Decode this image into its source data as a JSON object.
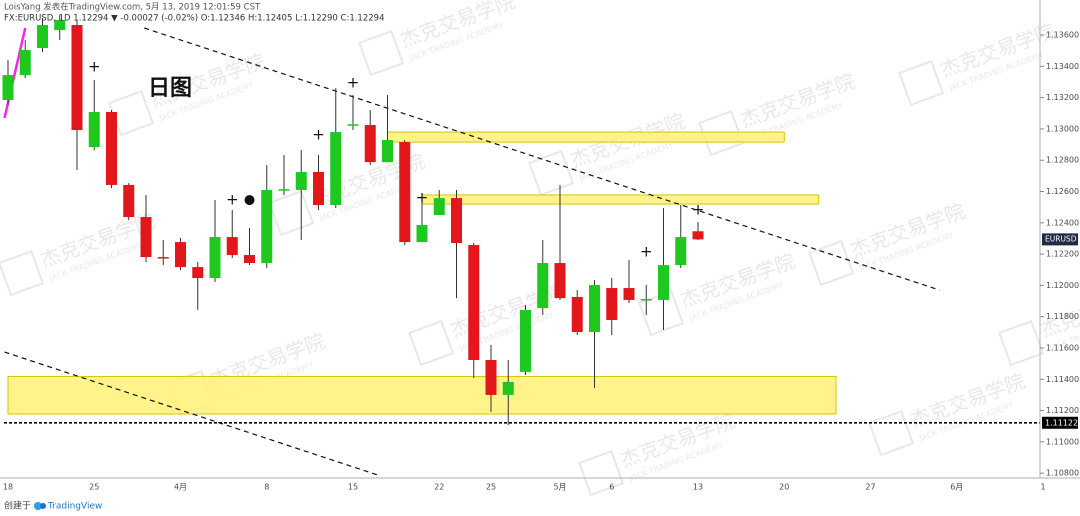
{
  "header": {
    "line1": "LoisYang 发表在TradingView.com, 5月 13, 2019 12:01:59 CST",
    "line2": "FX:EURUSD, 1D 1.12294 ▼ -0.00027 (-0.02%) O:1.12346 H:1.12405 L:1.12290 C:1.12294"
  },
  "footer": {
    "created": "创建于",
    "brand": "TradingView"
  },
  "watermark": {
    "cn": "杰克交易学院",
    "en": "JACK TRADING ACADEMY"
  },
  "chart_data": {
    "type": "candlestick",
    "title": "日图",
    "symbol": "EURUSD",
    "up_color": "#1ec81e",
    "down_color": "#e3161c",
    "categories": [
      "18",
      null,
      null,
      null,
      null,
      "25",
      null,
      null,
      null,
      null,
      "4月",
      null,
      null,
      null,
      null,
      "8",
      null,
      null,
      null,
      null,
      "15",
      null,
      null,
      null,
      null,
      "22",
      null,
      null,
      "25",
      null,
      null,
      null,
      "5月",
      null,
      null,
      "6",
      null,
      null,
      null,
      null,
      "13",
      null,
      null,
      null,
      null,
      "20",
      null,
      null,
      null,
      null,
      "27",
      null,
      null,
      null,
      null,
      "6月",
      null,
      null,
      null,
      null,
      "1"
    ],
    "open": [
      1.13185,
      1.13344,
      1.13517,
      1.13632,
      1.13664,
      1.12884,
      1.13108,
      1.12642,
      1.12437,
      1.12181,
      1.12277,
      1.12117,
      1.12047,
      1.12309,
      1.12194,
      1.12143,
      1.1261,
      1.1261,
      1.12725,
      1.12514,
      1.13025,
      1.13025,
      1.12788,
      1.12916,
      1.12277,
      1.1245,
      1.12558,
      1.12258,
      1.11523,
      1.113,
      1.11447,
      1.11855,
      1.12143,
      1.11926,
      1.11702,
      1.11983,
      1.11983,
      1.11907,
      1.11907,
      1.1213,
      1.12346,
      null,
      null,
      null,
      null,
      null,
      null,
      null,
      null,
      null,
      null,
      null,
      null,
      null,
      null,
      null,
      null,
      null,
      null,
      null,
      null
    ],
    "high": [
      1.1344,
      1.13568,
      1.13709,
      1.13728,
      1.13696,
      1.13312,
      1.13121,
      1.12654,
      1.12578,
      1.1229,
      1.12303,
      1.12149,
      1.12546,
      1.12482,
      1.12367,
      1.12769,
      1.12833,
      1.12865,
      1.12833,
      1.13261,
      1.13217,
      1.13121,
      1.13217,
      1.12929,
      1.12578,
      1.1261,
      1.1261,
      1.12271,
      1.11619,
      1.11523,
      1.11875,
      1.1229,
      1.12642,
      1.1197,
      1.12034,
      1.12047,
      1.12162,
      1.12002,
      1.12494,
      1.12514,
      1.12405,
      null,
      null,
      null,
      null,
      null,
      null,
      null,
      null,
      null,
      null,
      null,
      null,
      null,
      null,
      null,
      null,
      null,
      null,
      null,
      null
    ],
    "low": [
      1.13153,
      1.13325,
      1.13491,
      1.13568,
      1.12737,
      1.12865,
      1.12622,
      1.12418,
      1.12149,
      1.1213,
      1.12098,
      1.11843,
      1.12022,
      1.12175,
      1.1213,
      1.12111,
      1.12578,
      1.1229,
      1.12482,
      1.12494,
      1.12993,
      1.12769,
      1.12788,
      1.12258,
      1.12277,
      1.1245,
      1.11919,
      1.11408,
      1.11191,
      1.11108,
      1.11427,
      1.11811,
      1.11907,
      1.11683,
      1.11344,
      1.11683,
      1.11887,
      1.11811,
      1.11715,
      1.12111,
      1.1229,
      null,
      null,
      null,
      null,
      null,
      null,
      null,
      null,
      null,
      null,
      null,
      null,
      null,
      null,
      null,
      null,
      null,
      null,
      null,
      null
    ],
    "close": [
      1.13344,
      1.13504,
      1.13664,
      1.13696,
      1.12993,
      1.13108,
      1.12642,
      1.12437,
      1.12181,
      1.12175,
      1.12117,
      1.12047,
      1.12309,
      1.12194,
      1.12143,
      1.1261,
      1.12615,
      1.12725,
      1.12514,
      1.1298,
      1.1303,
      1.12788,
      1.12929,
      1.12277,
      1.12386,
      1.12558,
      1.12271,
      1.11523,
      1.113,
      1.11383,
      1.11843,
      1.12143,
      1.11919,
      1.11702,
      1.12002,
      1.11779,
      1.11907,
      1.11913,
      1.1213,
      1.12309,
      1.12294,
      null,
      null,
      null,
      null,
      null,
      null,
      null,
      null,
      null,
      null,
      null,
      null,
      null,
      null,
      null,
      null,
      null,
      null,
      null,
      null
    ],
    "ylim": [
      1.10769,
      1.13824
    ],
    "yticks": [
      {
        "value": 1.108,
        "label": "1.10800"
      },
      {
        "value": 1.11,
        "label": "1.11000"
      },
      {
        "value": 1.112,
        "label": "1.11200"
      },
      {
        "value": 1.114,
        "label": "1.11400"
      },
      {
        "value": 1.116,
        "label": "1.11600"
      },
      {
        "value": 1.118,
        "label": "1.11800"
      },
      {
        "value": 1.12,
        "label": "1.12000"
      },
      {
        "value": 1.122,
        "label": "1.12200"
      },
      {
        "value": 1.124,
        "label": "1.12400"
      },
      {
        "value": 1.126,
        "label": "1.12600"
      },
      {
        "value": 1.128,
        "label": "1.12800"
      },
      {
        "value": 1.13,
        "label": "1.13000"
      },
      {
        "value": 1.132,
        "label": "1.13200"
      },
      {
        "value": 1.134,
        "label": "1.13400"
      },
      {
        "value": 1.136,
        "label": "1.13600"
      }
    ],
    "hline": 1.11122,
    "zones": [
      {
        "start": 0,
        "end": 48,
        "top": 1.11418,
        "bottom": 1.11178
      },
      {
        "start": 22,
        "end": 45,
        "top": 1.1298,
        "bottom": 1.12916
      },
      {
        "start": 24,
        "end": 47,
        "top": 1.12578,
        "bottom": 1.1252
      }
    ],
    "trendlines": [
      {
        "x": [
          7.9,
          54
        ],
        "y": [
          1.13645,
          1.1197
        ],
        "color": "#111111",
        "dash": true
      },
      {
        "x": [
          -0.2,
          21.6
        ],
        "y": [
          1.11574,
          1.10782
        ],
        "color": "#111111",
        "dash": true
      },
      {
        "x": [
          -0.2,
          1
        ],
        "y": [
          1.1307,
          1.13645
        ],
        "color": "#ff22ee",
        "dash": false
      }
    ],
    "markers": [
      {
        "index": 5,
        "price": 1.13396,
        "label": "+"
      },
      {
        "index": 13,
        "price": 1.12546,
        "label": "+"
      },
      {
        "index": 14,
        "price": 1.12546,
        "label": "●"
      },
      {
        "index": 18,
        "price": 1.12961,
        "label": "+"
      },
      {
        "index": 20,
        "price": 1.13293,
        "label": "+"
      },
      {
        "index": 24,
        "price": 1.12558,
        "label": "+"
      },
      {
        "index": 37,
        "price": 1.12213,
        "label": "+"
      },
      {
        "index": 40,
        "price": 1.12482,
        "label": "+"
      }
    ]
  }
}
